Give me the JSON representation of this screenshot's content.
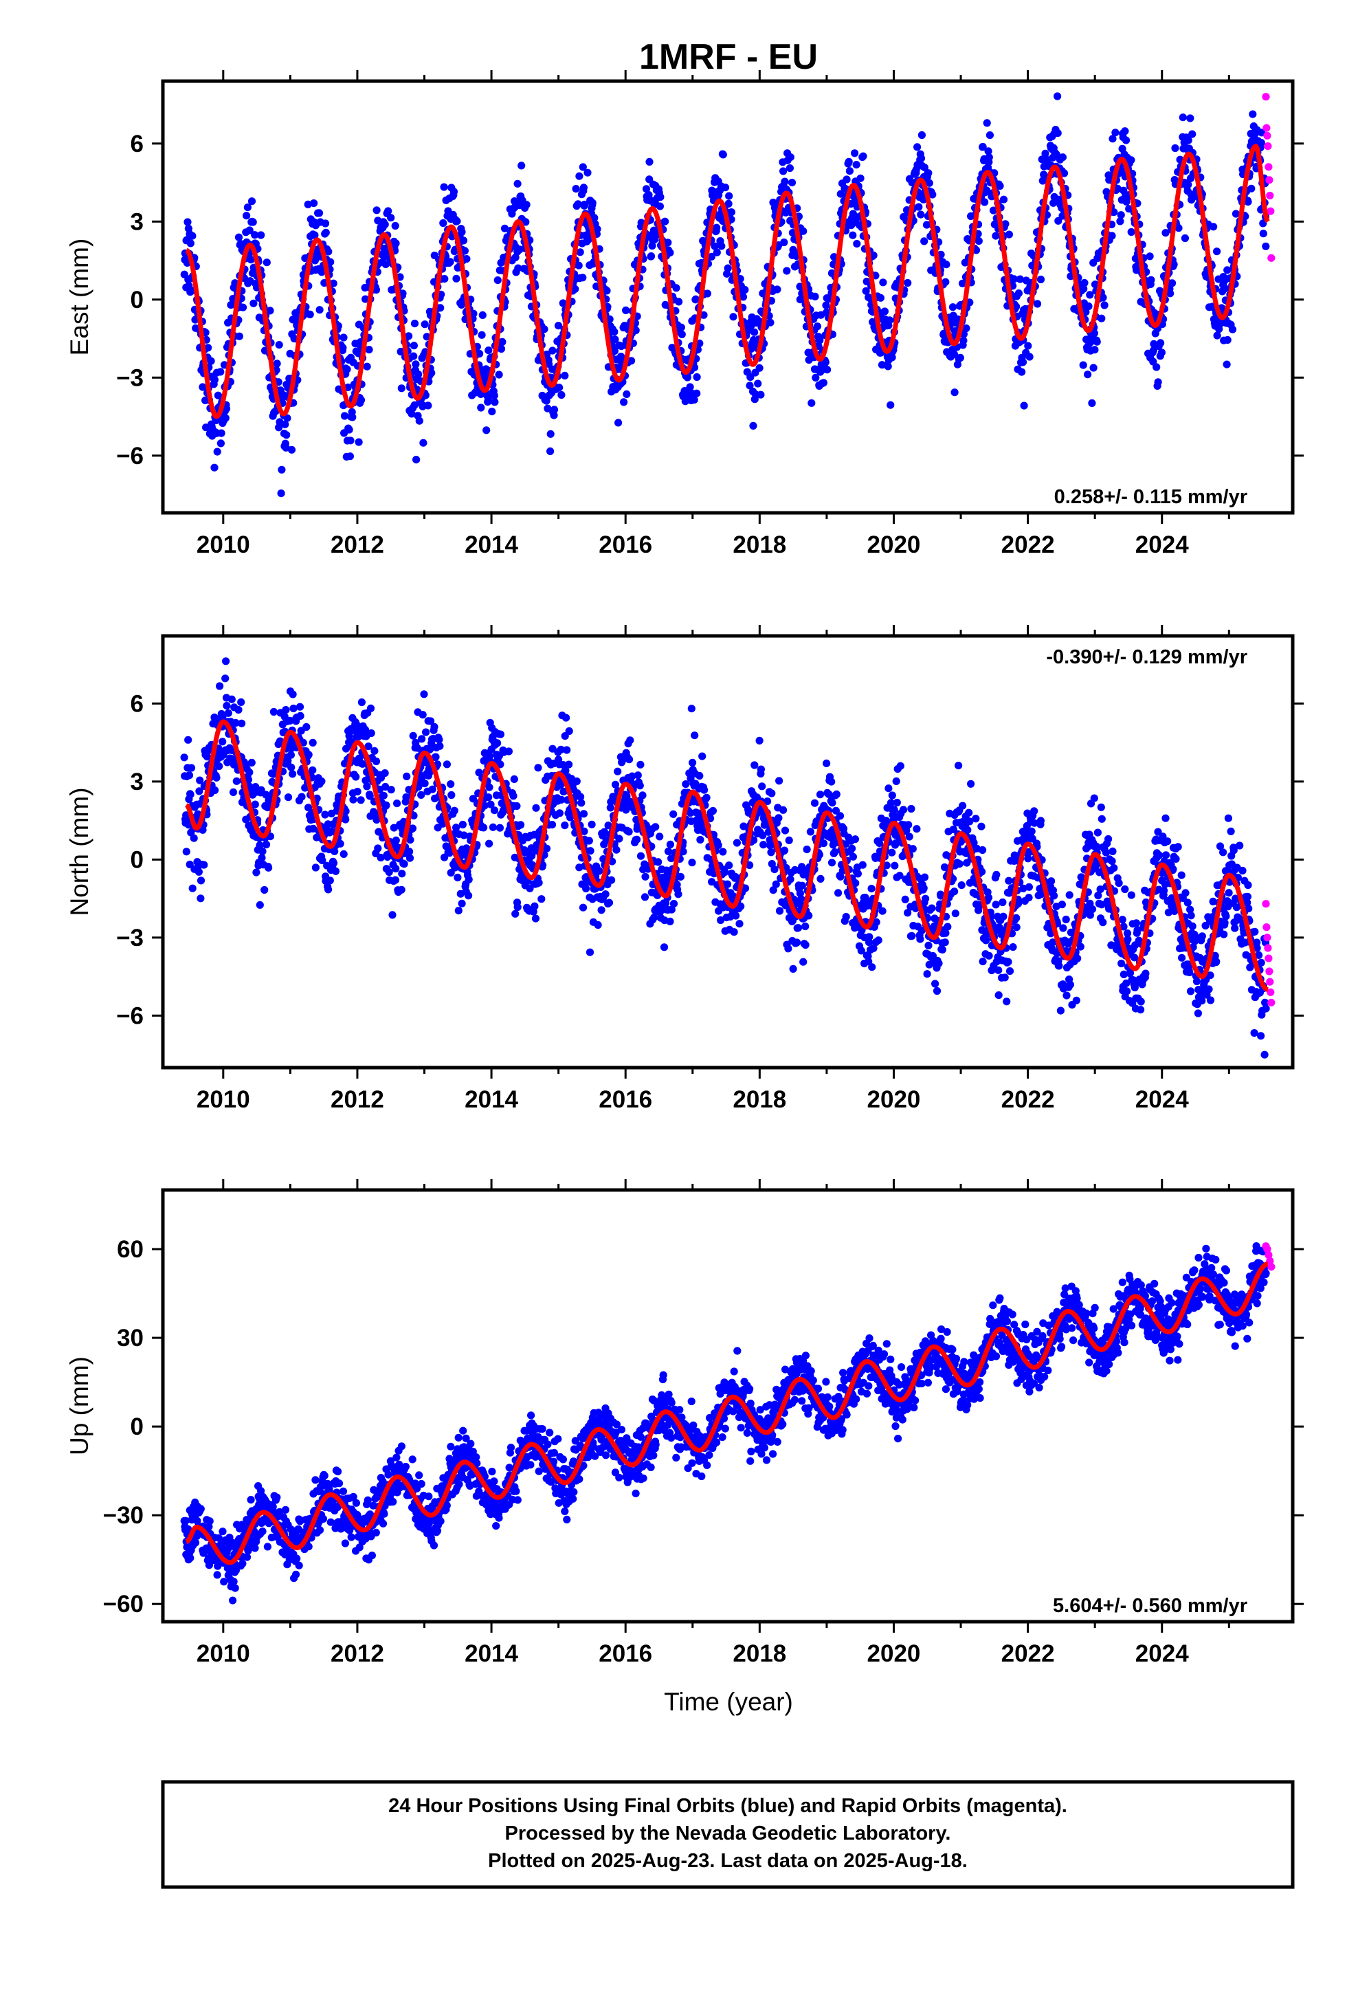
{
  "title": "1MRF - EU",
  "xlabel": "Time (year)",
  "footer": [
    "24 Hour Positions Using Final Orbits (blue) and Rapid Orbits (magenta).",
    "Processed by the Nevada Geodetic Laboratory.",
    "Plotted on 2025-Aug-23. Last data on 2025-Aug-18."
  ],
  "colors": {
    "final": "#0000ff",
    "rapid": "#ff00ff",
    "model": "#ff0000",
    "frame": "#000000"
  },
  "chart_data": [
    {
      "type": "scatter",
      "ylabel": "East (mm)",
      "rate_label": "0.258+/- 0.115 mm/yr",
      "rate_position": "bottom-right",
      "xlim": [
        2009.1,
        2025.95
      ],
      "ylim": [
        -8.2,
        8.4
      ],
      "xticks": [
        2010,
        2012,
        2014,
        2016,
        2018,
        2020,
        2022,
        2024
      ],
      "yticks": [
        -6,
        -3,
        0,
        3,
        6
      ],
      "data_range": [
        2009.42,
        2025.55
      ],
      "rapid_range": [
        2025.55,
        2025.63
      ],
      "model": {
        "x": [
          2009.45,
          2009.9,
          2010.4,
          2010.9,
          2011.4,
          2011.9,
          2012.4,
          2012.9,
          2013.4,
          2013.9,
          2014.4,
          2014.9,
          2015.4,
          2015.9,
          2016.4,
          2016.9,
          2017.4,
          2017.9,
          2018.4,
          2018.9,
          2019.4,
          2019.9,
          2020.4,
          2020.9,
          2021.4,
          2021.9,
          2022.4,
          2022.9,
          2023.4,
          2023.9,
          2024.4,
          2024.9,
          2025.4,
          2025.58
        ],
        "y": [
          1.9,
          -4.5,
          2.1,
          -4.4,
          2.3,
          -4.1,
          2.5,
          -3.8,
          2.8,
          -3.5,
          3.0,
          -3.3,
          3.3,
          -3.1,
          3.5,
          -2.8,
          3.8,
          -2.5,
          4.1,
          -2.3,
          4.4,
          -2.0,
          4.6,
          -1.7,
          4.9,
          -1.5,
          5.1,
          -1.2,
          5.4,
          -1.0,
          5.6,
          -0.7,
          5.9,
          3.0
        ]
      },
      "scatter_spread": 1.2,
      "rapid_values": [
        7.8,
        6.6,
        6.3,
        5.9,
        5.1,
        4.6,
        4.0,
        3.4,
        1.6
      ]
    },
    {
      "type": "scatter",
      "ylabel": "North (mm)",
      "rate_label": "-0.390+/- 0.129 mm/yr",
      "rate_position": "top-right",
      "xlim": [
        2009.1,
        2025.95
      ],
      "ylim": [
        -8.0,
        8.6
      ],
      "xticks": [
        2010,
        2012,
        2014,
        2016,
        2018,
        2020,
        2022,
        2024
      ],
      "yticks": [
        -6,
        -3,
        0,
        3,
        6
      ],
      "data_range": [
        2009.42,
        2025.55
      ],
      "rapid_range": [
        2025.55,
        2025.63
      ],
      "model": {
        "x": [
          2009.45,
          2009.6,
          2010.0,
          2010.6,
          2011.0,
          2011.6,
          2012.0,
          2012.6,
          2013.0,
          2013.6,
          2014.0,
          2014.6,
          2015.0,
          2015.6,
          2016.0,
          2016.6,
          2017.0,
          2017.6,
          2018.0,
          2018.6,
          2019.0,
          2019.6,
          2020.0,
          2020.6,
          2021.0,
          2021.6,
          2022.0,
          2022.6,
          2023.0,
          2023.6,
          2024.0,
          2024.6,
          2025.0,
          2025.58
        ],
        "y": [
          2.1,
          1.2,
          5.3,
          0.9,
          4.9,
          0.5,
          4.5,
          0.1,
          4.1,
          -0.3,
          3.7,
          -0.7,
          3.3,
          -1.0,
          2.9,
          -1.4,
          2.6,
          -1.8,
          2.2,
          -2.2,
          1.8,
          -2.6,
          1.4,
          -3.0,
          1.0,
          -3.4,
          0.6,
          -3.8,
          0.2,
          -4.2,
          -0.2,
          -4.5,
          -0.6,
          -5.0
        ]
      },
      "scatter_spread": 1.3,
      "rapid_values": [
        -1.7,
        -2.6,
        -3.0,
        -3.4,
        -3.8,
        -4.3,
        -4.7,
        -5.1,
        -5.5
      ]
    },
    {
      "type": "scatter",
      "ylabel": "Up (mm)",
      "rate_label": "5.604+/- 0.560 mm/yr",
      "rate_position": "bottom-right",
      "xlim": [
        2009.1,
        2025.95
      ],
      "ylim": [
        -66,
        80
      ],
      "xticks": [
        2010,
        2012,
        2014,
        2016,
        2018,
        2020,
        2022,
        2024
      ],
      "yticks": [
        -60,
        -30,
        0,
        30,
        60
      ],
      "data_range": [
        2009.42,
        2025.55
      ],
      "rapid_range": [
        2025.55,
        2025.63
      ],
      "model": {
        "x": [
          2009.45,
          2009.6,
          2010.1,
          2010.6,
          2011.1,
          2011.6,
          2012.1,
          2012.6,
          2013.1,
          2013.6,
          2014.1,
          2014.6,
          2015.1,
          2015.6,
          2016.1,
          2016.6,
          2017.1,
          2017.6,
          2018.1,
          2018.6,
          2019.1,
          2019.6,
          2020.1,
          2020.6,
          2021.1,
          2021.6,
          2022.1,
          2022.6,
          2023.1,
          2023.6,
          2024.1,
          2024.6,
          2025.1,
          2025.58
        ],
        "y": [
          -39,
          -34,
          -46,
          -29,
          -41,
          -23,
          -35,
          -17,
          -30,
          -12,
          -24,
          -6,
          -19,
          -1,
          -13,
          5,
          -8,
          10,
          -2,
          16,
          3,
          22,
          9,
          27,
          14,
          33,
          20,
          39,
          26,
          44,
          32,
          50,
          38,
          55
        ]
      },
      "scatter_spread": 6.0,
      "rapid_values": [
        61,
        60,
        58,
        56,
        54
      ]
    }
  ]
}
